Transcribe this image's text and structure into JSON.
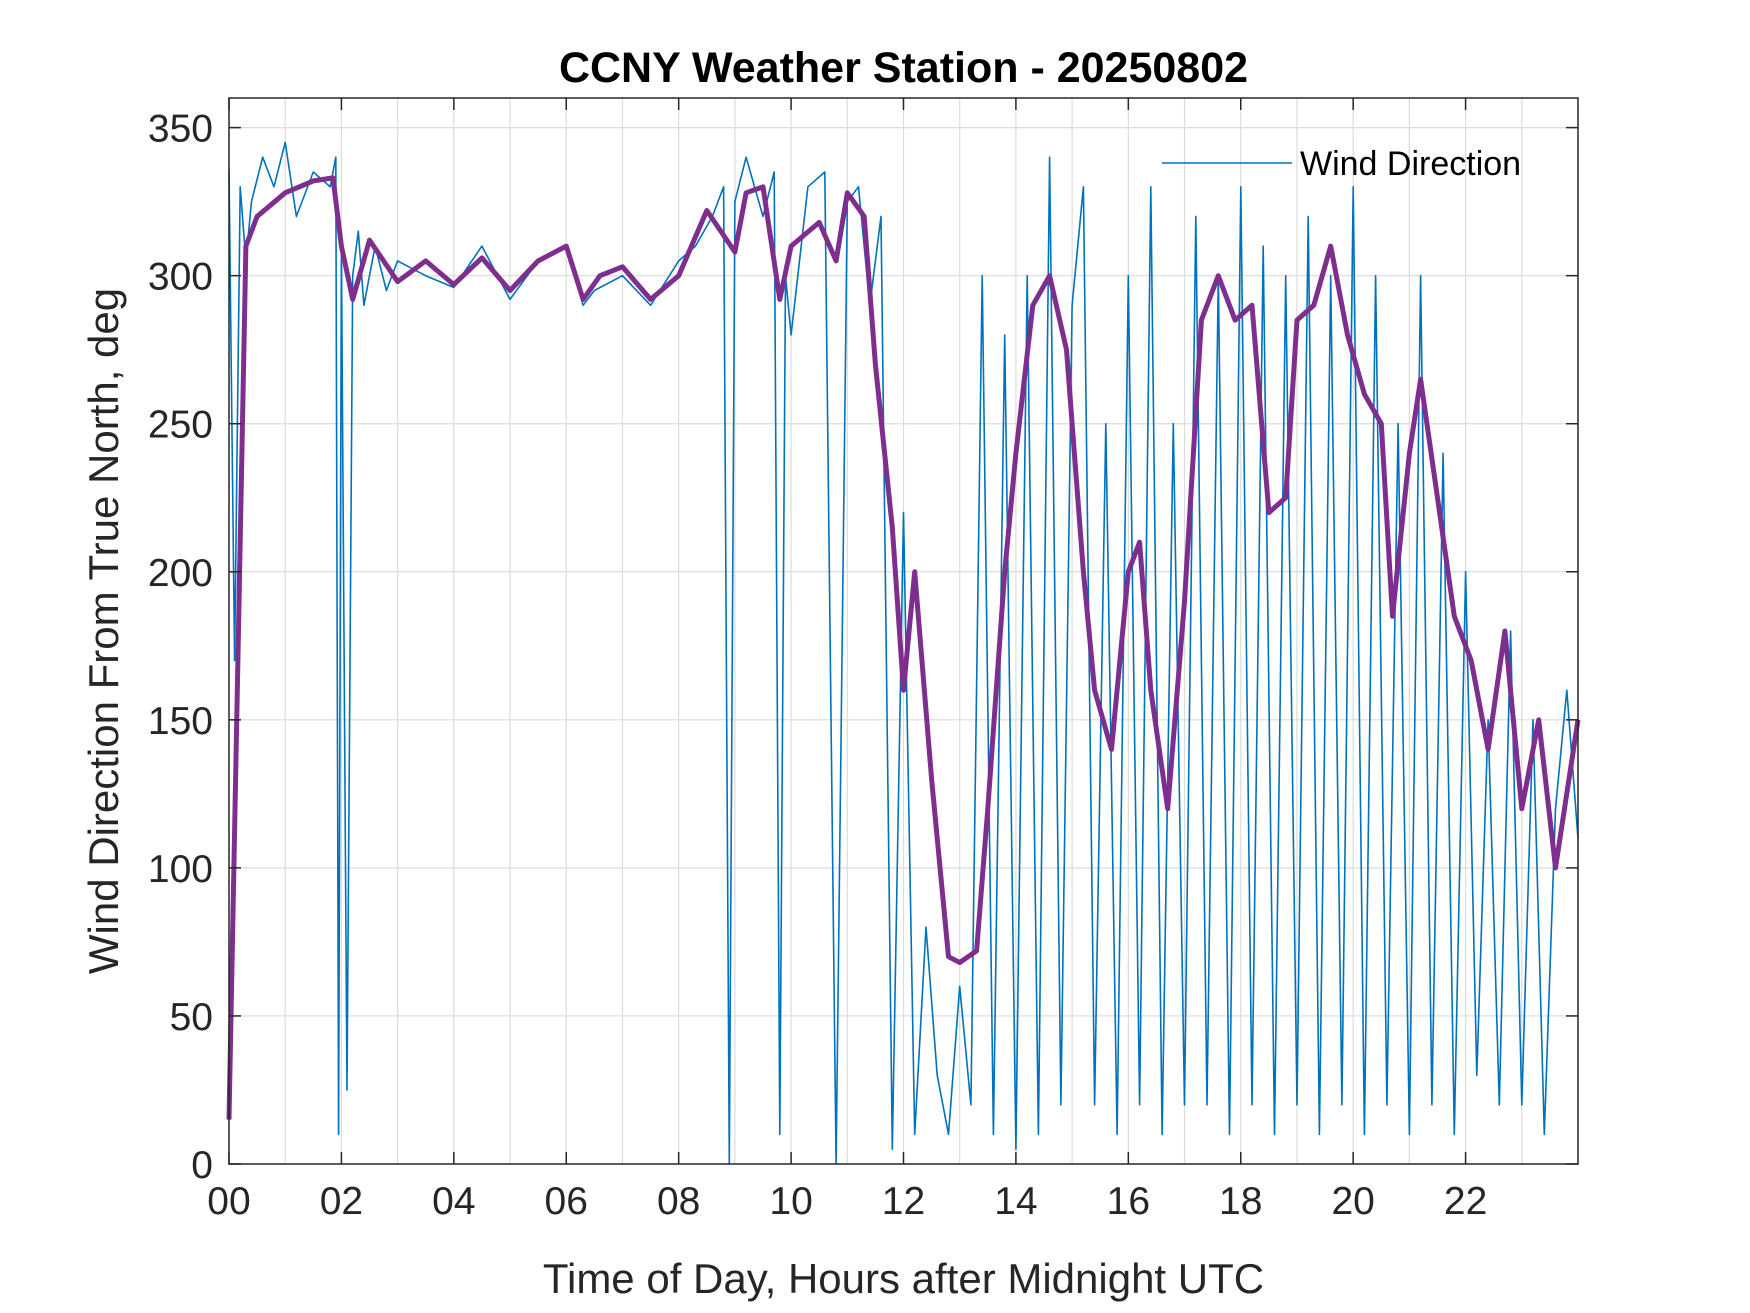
{
  "chart_data": {
    "type": "line",
    "title": "CCNY Weather Station - 20250802",
    "xlabel": "Time of Day, Hours after Midnight UTC",
    "ylabel": "Wind Direction From True North, deg",
    "xlim": [
      0,
      24
    ],
    "ylim": [
      0,
      360
    ],
    "xticks": [
      0,
      2,
      4,
      6,
      8,
      10,
      12,
      14,
      16,
      18,
      20,
      22
    ],
    "xtick_labels": [
      "00",
      "02",
      "04",
      "06",
      "08",
      "10",
      "12",
      "14",
      "16",
      "18",
      "20",
      "22"
    ],
    "yticks": [
      0,
      50,
      100,
      150,
      200,
      250,
      300,
      350
    ],
    "ytick_labels": [
      "0",
      "50",
      "100",
      "150",
      "200",
      "250",
      "300",
      "350"
    ],
    "grid": true,
    "legend_position": "top-right",
    "series": [
      {
        "name": "Wind Direction",
        "color": "#0072BD",
        "style": "thin noisy raw samples",
        "x": [
          0,
          0.1,
          0.2,
          0.3,
          0.4,
          0.6,
          0.8,
          1.0,
          1.2,
          1.5,
          1.8,
          1.9,
          1.95,
          2.0,
          2.1,
          2.2,
          2.3,
          2.4,
          2.6,
          2.8,
          3.0,
          3.5,
          4.0,
          4.5,
          5.0,
          5.5,
          6.0,
          6.3,
          6.5,
          7.0,
          7.5,
          8.0,
          8.3,
          8.6,
          8.8,
          8.9,
          9.0,
          9.2,
          9.5,
          9.7,
          9.8,
          9.9,
          10.0,
          10.3,
          10.6,
          10.8,
          11.0,
          11.2,
          11.4,
          11.6,
          11.8,
          12.0,
          12.2,
          12.4,
          12.6,
          12.8,
          13.0,
          13.2,
          13.4,
          13.6,
          13.8,
          14.0,
          14.2,
          14.4,
          14.6,
          14.8,
          15.0,
          15.2,
          15.4,
          15.6,
          15.8,
          16.0,
          16.2,
          16.4,
          16.6,
          16.8,
          17.0,
          17.2,
          17.4,
          17.6,
          17.8,
          18.0,
          18.2,
          18.4,
          18.6,
          18.8,
          19.0,
          19.2,
          19.4,
          19.6,
          19.8,
          20.0,
          20.2,
          20.4,
          20.6,
          20.8,
          21.0,
          21.2,
          21.4,
          21.6,
          21.8,
          22.0,
          22.2,
          22.4,
          22.6,
          22.8,
          23.0,
          23.2,
          23.4,
          23.6,
          23.8,
          24.0
        ],
        "y": [
          336,
          170,
          330,
          305,
          325,
          340,
          330,
          345,
          320,
          335,
          330,
          340,
          10,
          310,
          25,
          300,
          315,
          290,
          310,
          295,
          305,
          300,
          296,
          310,
          292,
          305,
          310,
          290,
          295,
          300,
          290,
          305,
          310,
          320,
          330,
          0,
          325,
          340,
          320,
          335,
          10,
          300,
          280,
          330,
          335,
          0,
          325,
          330,
          290,
          320,
          5,
          220,
          10,
          80,
          30,
          10,
          60,
          20,
          300,
          10,
          280,
          5,
          300,
          10,
          340,
          20,
          290,
          330,
          20,
          250,
          10,
          300,
          20,
          330,
          10,
          250,
          20,
          320,
          20,
          300,
          10,
          330,
          20,
          310,
          10,
          300,
          20,
          320,
          10,
          300,
          20,
          330,
          10,
          300,
          20,
          250,
          10,
          300,
          20,
          240,
          10,
          200,
          30,
          150,
          20,
          180,
          20,
          150,
          10,
          120,
          160,
          110
        ]
      },
      {
        "name": "",
        "color": "#7E2F8E",
        "style": "thick smoothed average",
        "x": [
          0,
          0.3,
          0.5,
          1.0,
          1.5,
          1.85,
          2.0,
          2.2,
          2.5,
          3.0,
          3.5,
          4.0,
          4.5,
          5.0,
          5.5,
          6.0,
          6.3,
          6.6,
          7.0,
          7.5,
          8.0,
          8.5,
          9.0,
          9.2,
          9.5,
          9.8,
          10.0,
          10.5,
          10.8,
          11.0,
          11.3,
          11.5,
          11.8,
          12.0,
          12.2,
          12.5,
          12.8,
          13.0,
          13.3,
          13.5,
          13.8,
          14.0,
          14.3,
          14.6,
          14.9,
          15.2,
          15.4,
          15.7,
          16.0,
          16.2,
          16.4,
          16.7,
          17.0,
          17.3,
          17.6,
          17.9,
          18.2,
          18.5,
          18.8,
          19.0,
          19.3,
          19.6,
          19.9,
          20.2,
          20.5,
          20.7,
          21.0,
          21.2,
          21.5,
          21.8,
          22.1,
          22.4,
          22.7,
          23.0,
          23.3,
          23.6,
          24.0
        ],
        "y": [
          15,
          310,
          320,
          328,
          332,
          333,
          310,
          292,
          312,
          298,
          305,
          297,
          306,
          295,
          305,
          310,
          292,
          300,
          303,
          292,
          300,
          322,
          308,
          328,
          330,
          292,
          310,
          318,
          305,
          328,
          320,
          270,
          215,
          160,
          200,
          130,
          70,
          68,
          72,
          120,
          200,
          240,
          290,
          300,
          275,
          200,
          160,
          140,
          200,
          210,
          160,
          120,
          190,
          285,
          300,
          285,
          290,
          220,
          225,
          285,
          290,
          310,
          280,
          260,
          250,
          185,
          240,
          265,
          225,
          185,
          170,
          140,
          180,
          120,
          150,
          100,
          150
        ]
      }
    ]
  }
}
